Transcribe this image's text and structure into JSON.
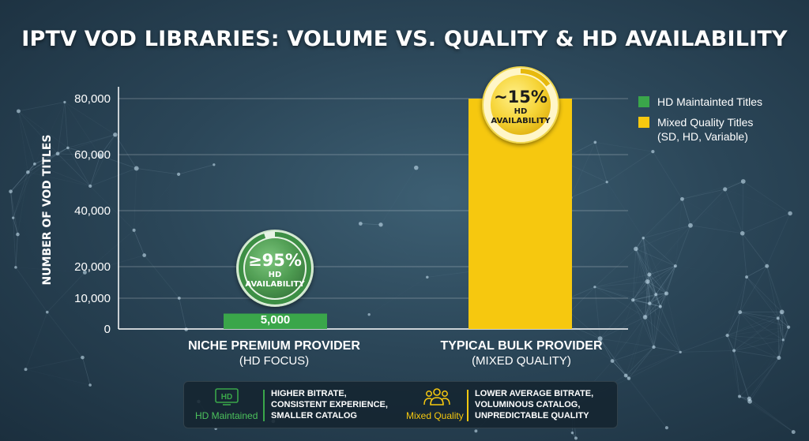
{
  "title": "IPTV VOD LIBRARIES: VOLUME VS. QUALITY & HD AVAILABILITY",
  "colors": {
    "hd_green": "#3aa64a",
    "mixed_yellow": "#f6c80f",
    "badge_green": "#4f9c52",
    "badge_yellow": "#f3cf32"
  },
  "chart_data": {
    "type": "bar",
    "ylabel": "NUMBER OF VOD TITLES",
    "xlabel": "",
    "yticks": [
      {
        "value": 0,
        "label": "0"
      },
      {
        "value": 10000,
        "label": "10,000"
      },
      {
        "value": 20000,
        "label": "20,000"
      },
      {
        "value": 40000,
        "label": "40,000"
      },
      {
        "value": 60000,
        "label": "60,000"
      },
      {
        "value": 80000,
        "label": "80,000"
      }
    ],
    "ylim": [
      0,
      82000
    ],
    "grid": true,
    "legend_position": "top-right",
    "categories": [
      {
        "name": "NICHE PREMIUM PROVIDER",
        "sub": "(HD FOCUS)"
      },
      {
        "name": "TYPICAL BULK PROVIDER",
        "sub": "(MIXED QUALITY)"
      }
    ],
    "series": [
      {
        "name": "HD Maintainted Titles",
        "color": "#3aa64a",
        "values": [
          5000,
          null
        ]
      },
      {
        "name": "Mixed Quality Titles (SD, HD, Variable)",
        "color": "#f6c80f",
        "values": [
          null,
          80000
        ]
      }
    ],
    "bar_labels": [
      "5,000",
      ""
    ],
    "badges": [
      {
        "percent_text": "≥95%",
        "line1": "HD",
        "line2": "AVAILABILITY",
        "fraction": 0.95,
        "style": "green"
      },
      {
        "percent_text": "~15%",
        "line1": "HD",
        "line2": "AVAILABILITY",
        "fraction": 0.15,
        "style": "yellow"
      }
    ]
  },
  "legend": {
    "items": [
      {
        "label_lines": [
          "HD Maintainted Titles"
        ],
        "color": "#3aa64a"
      },
      {
        "label_lines": [
          "Mixed Quality Titles",
          "(SD, HD, Variable)"
        ],
        "color": "#f6c80f"
      }
    ]
  },
  "categories_display": [
    {
      "main": "NICHE PREMIUM PROVIDER",
      "sub": "(HD FOCUS)"
    },
    {
      "main": "TYPICAL BULK PROVIDER",
      "sub": "(MIXED QUALITY)"
    }
  ],
  "bottom_panel": {
    "left": {
      "icon": "hd-icon",
      "icon_text": "HD",
      "caption": "HD Maintained",
      "lines": [
        "HIGHER BITRATE,",
        "CONSISTENT EXPERIENCE,",
        "SMALLER CATALOG"
      ]
    },
    "right": {
      "icon": "people-group-icon",
      "caption": "Mixed Quality",
      "lines": [
        "LOWER AVERAGE BITRATE,",
        "VOLUMINOUS CATALOG,",
        "UNPREDICTABLE QUALITY"
      ]
    }
  }
}
